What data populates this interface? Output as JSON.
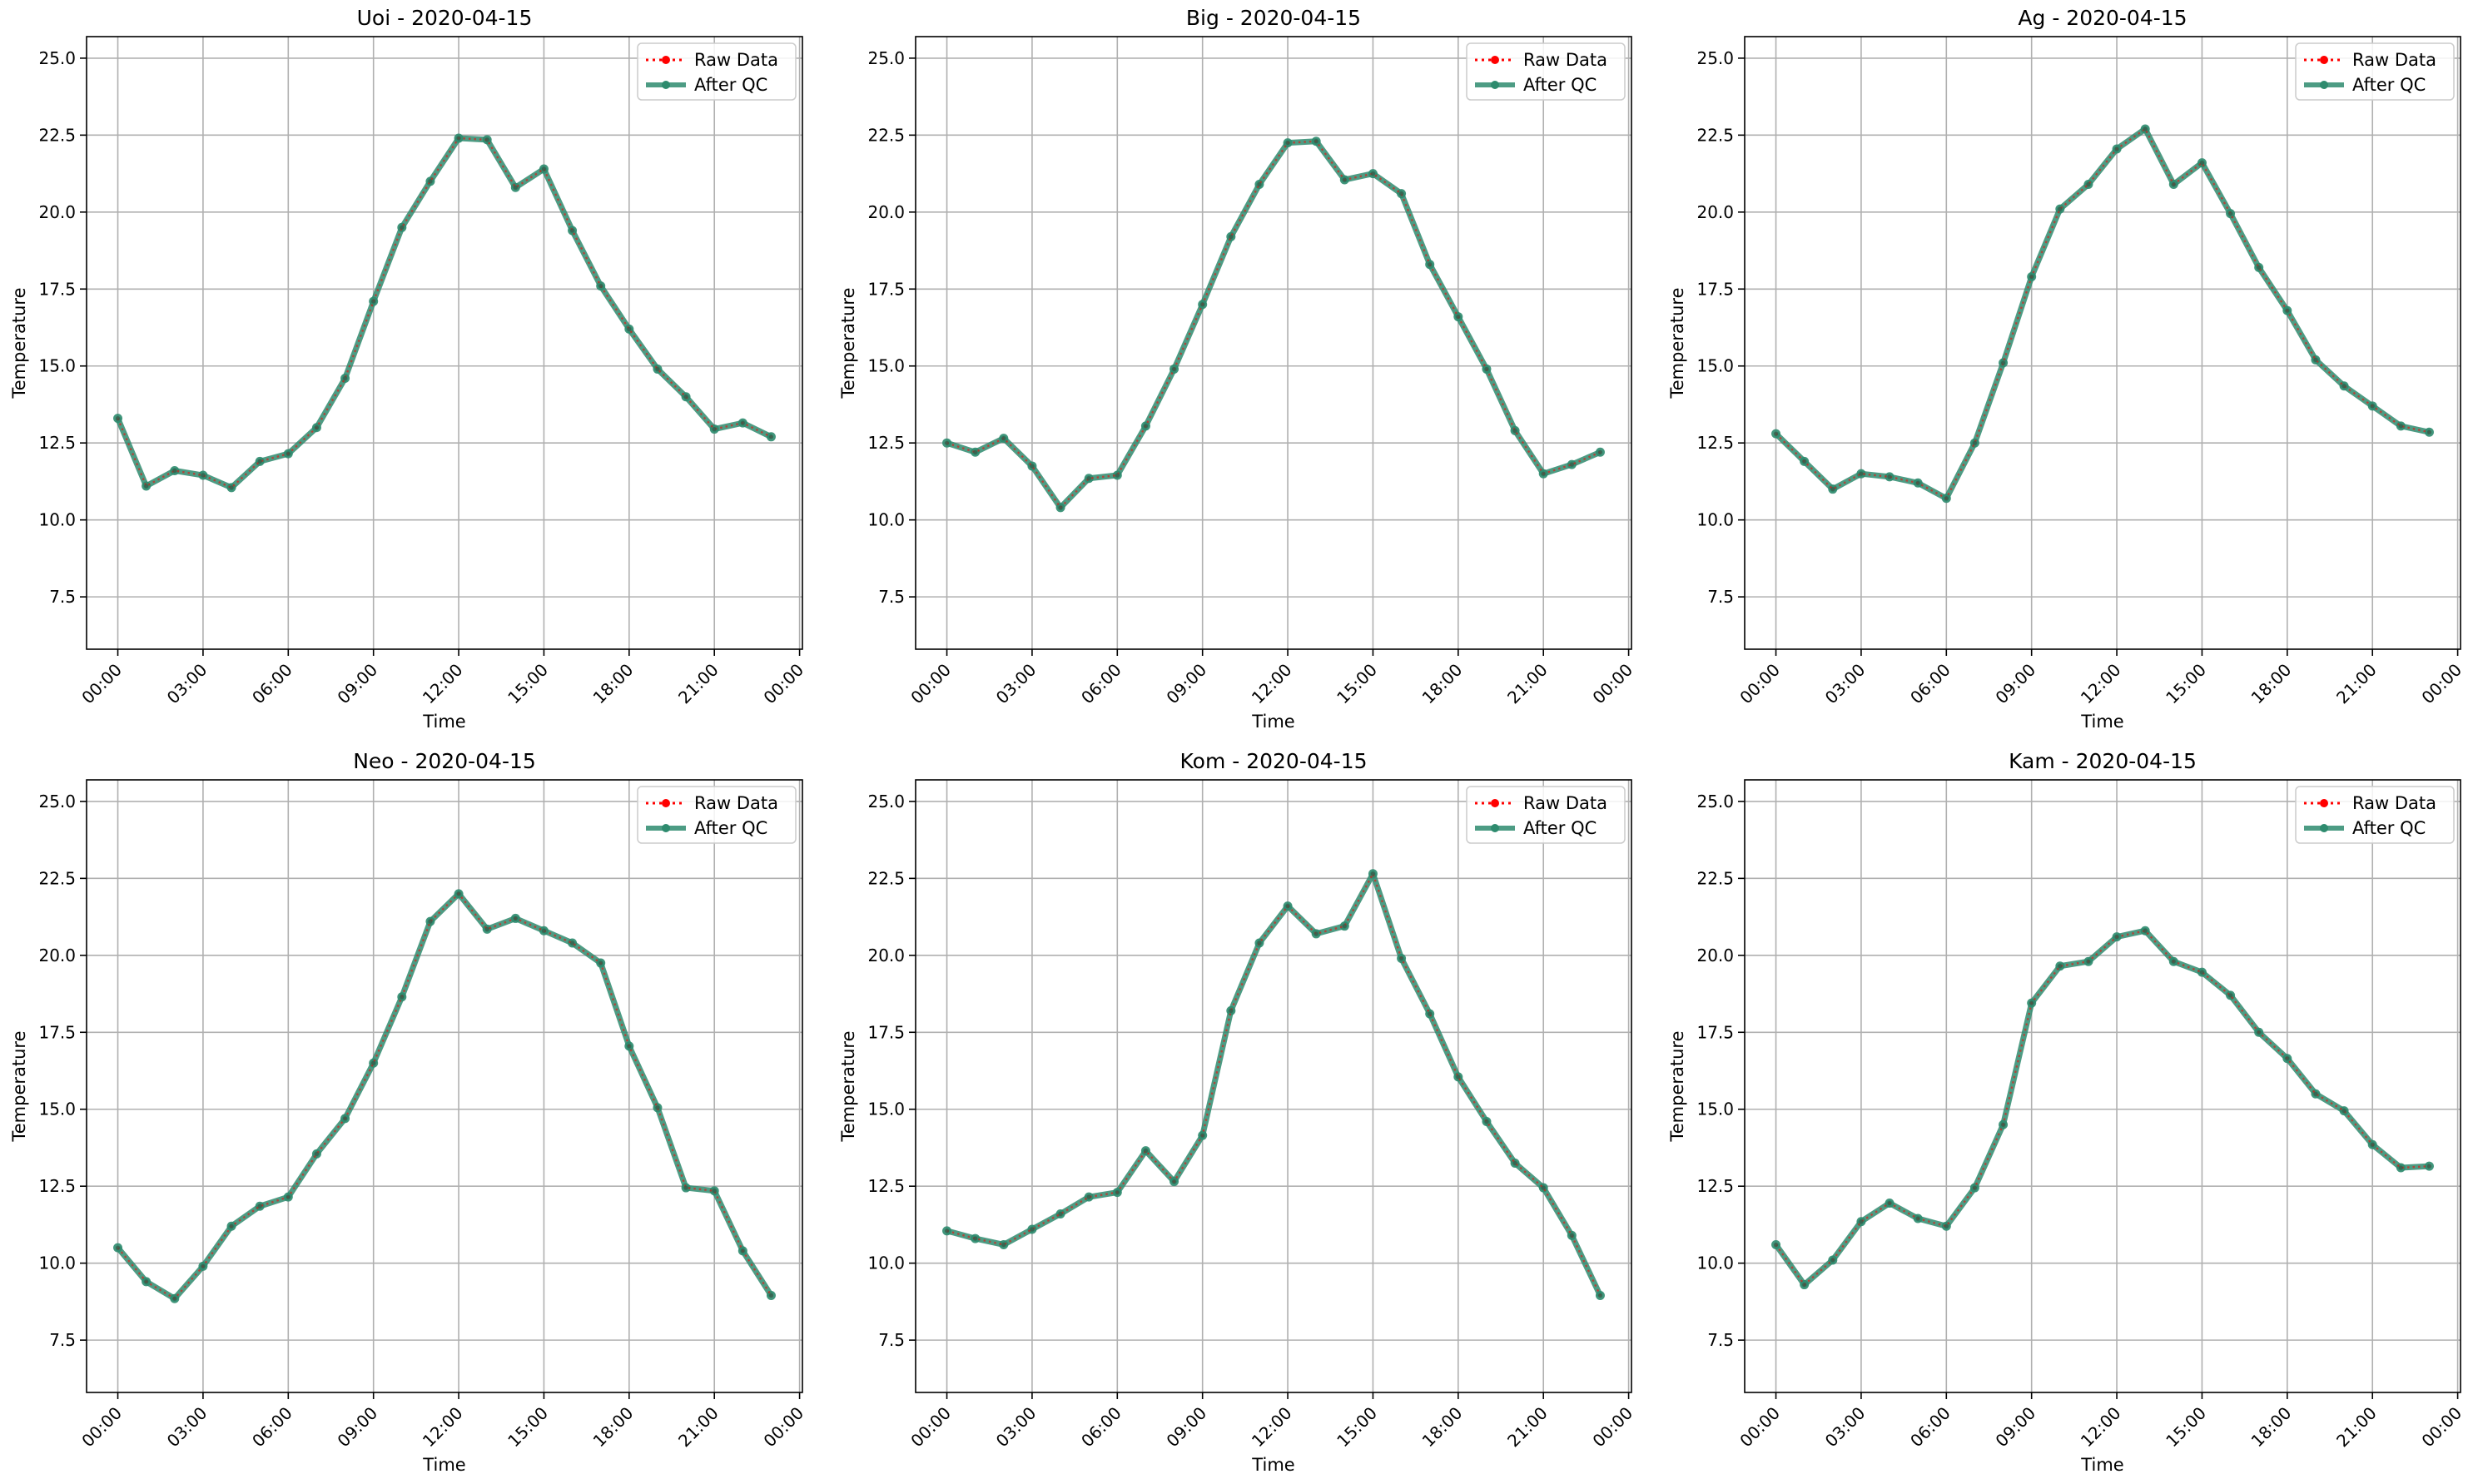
{
  "figure": {
    "panels_per_row": 3
  },
  "colors": {
    "raw": "#ff0000",
    "qc": "#2e8b6e",
    "grid": "#b0b0b0",
    "axes": "#000000"
  },
  "chart_data": [
    {
      "type": "line",
      "title": "Uoi - 2020-04-15",
      "xlabel": "Time",
      "ylabel": "Temperature",
      "x": [
        "00:00",
        "01:00",
        "02:00",
        "03:00",
        "04:00",
        "05:00",
        "06:00",
        "07:00",
        "08:00",
        "09:00",
        "10:00",
        "11:00",
        "12:00",
        "13:00",
        "14:00",
        "15:00",
        "16:00",
        "17:00",
        "18:00",
        "19:00",
        "20:00",
        "21:00",
        "22:00",
        "23:00"
      ],
      "xtick_labels": [
        "00:00",
        "03:00",
        "06:00",
        "09:00",
        "12:00",
        "15:00",
        "18:00",
        "21:00",
        "00:00"
      ],
      "xlim_hours": [
        -1.1,
        24.1
      ],
      "ylim": [
        5.8,
        25.7
      ],
      "yticks": [
        7.5,
        10.0,
        12.5,
        15.0,
        17.5,
        20.0,
        22.5,
        25.0
      ],
      "ytick_labels": [
        "7.5",
        "10.0",
        "12.5",
        "15.0",
        "17.5",
        "20.0",
        "22.5",
        "25.0"
      ],
      "grid": true,
      "legend": "top-right",
      "series": [
        {
          "name": "Raw Data",
          "style": "dotted",
          "values": [
            13.3,
            11.1,
            11.6,
            11.45,
            11.05,
            11.9,
            12.15,
            13.0,
            14.6,
            17.1,
            19.5,
            21.0,
            22.4,
            22.35,
            20.8,
            21.4,
            19.4,
            17.6,
            16.2,
            14.9,
            14.0,
            12.95,
            13.15,
            12.7
          ]
        },
        {
          "name": "After QC",
          "style": "solid",
          "values": [
            13.3,
            11.1,
            11.6,
            11.45,
            11.05,
            11.9,
            12.15,
            13.0,
            14.6,
            17.1,
            19.5,
            21.0,
            22.4,
            22.35,
            20.8,
            21.4,
            19.4,
            17.6,
            16.2,
            14.9,
            14.0,
            12.95,
            13.15,
            12.7
          ]
        }
      ]
    },
    {
      "type": "line",
      "title": "Big - 2020-04-15",
      "xlabel": "Time",
      "ylabel": "Temperature",
      "x": [
        "00:00",
        "01:00",
        "02:00",
        "03:00",
        "04:00",
        "05:00",
        "06:00",
        "07:00",
        "08:00",
        "09:00",
        "10:00",
        "11:00",
        "12:00",
        "13:00",
        "14:00",
        "15:00",
        "16:00",
        "17:00",
        "18:00",
        "19:00",
        "20:00",
        "21:00",
        "22:00",
        "23:00"
      ],
      "xtick_labels": [
        "00:00",
        "03:00",
        "06:00",
        "09:00",
        "12:00",
        "15:00",
        "18:00",
        "21:00",
        "00:00"
      ],
      "xlim_hours": [
        -1.1,
        24.1
      ],
      "ylim": [
        5.8,
        25.7
      ],
      "yticks": [
        7.5,
        10.0,
        12.5,
        15.0,
        17.5,
        20.0,
        22.5,
        25.0
      ],
      "ytick_labels": [
        "7.5",
        "10.0",
        "12.5",
        "15.0",
        "17.5",
        "20.0",
        "22.5",
        "25.0"
      ],
      "grid": true,
      "legend": "top-right",
      "series": [
        {
          "name": "Raw Data",
          "style": "dotted",
          "values": [
            12.5,
            12.2,
            12.65,
            11.75,
            10.4,
            11.35,
            11.45,
            13.05,
            14.9,
            17.0,
            19.2,
            20.9,
            22.25,
            22.3,
            21.05,
            21.25,
            20.6,
            18.3,
            16.6,
            14.9,
            12.9,
            11.5,
            11.8,
            12.2
          ]
        },
        {
          "name": "After QC",
          "style": "solid",
          "values": [
            12.5,
            12.2,
            12.65,
            11.75,
            10.4,
            11.35,
            11.45,
            13.05,
            14.9,
            17.0,
            19.2,
            20.9,
            22.25,
            22.3,
            21.05,
            21.25,
            20.6,
            18.3,
            16.6,
            14.9,
            12.9,
            11.5,
            11.8,
            12.2
          ]
        }
      ]
    },
    {
      "type": "line",
      "title": "Ag - 2020-04-15",
      "xlabel": "Time",
      "ylabel": "Temperature",
      "x": [
        "00:00",
        "01:00",
        "02:00",
        "03:00",
        "04:00",
        "05:00",
        "06:00",
        "07:00",
        "08:00",
        "09:00",
        "10:00",
        "11:00",
        "12:00",
        "13:00",
        "14:00",
        "15:00",
        "16:00",
        "17:00",
        "18:00",
        "19:00",
        "20:00",
        "21:00",
        "22:00",
        "23:00"
      ],
      "xtick_labels": [
        "00:00",
        "03:00",
        "06:00",
        "09:00",
        "12:00",
        "15:00",
        "18:00",
        "21:00",
        "00:00"
      ],
      "xlim_hours": [
        -1.1,
        24.1
      ],
      "ylim": [
        5.8,
        25.7
      ],
      "yticks": [
        7.5,
        10.0,
        12.5,
        15.0,
        17.5,
        20.0,
        22.5,
        25.0
      ],
      "ytick_labels": [
        "7.5",
        "10.0",
        "12.5",
        "15.0",
        "17.5",
        "20.0",
        "22.5",
        "25.0"
      ],
      "grid": true,
      "legend": "top-right",
      "series": [
        {
          "name": "Raw Data",
          "style": "dotted",
          "values": [
            12.8,
            11.9,
            11.0,
            11.5,
            11.4,
            11.2,
            10.7,
            12.5,
            15.1,
            17.9,
            20.1,
            20.9,
            22.05,
            22.7,
            20.9,
            21.6,
            19.95,
            18.2,
            16.8,
            15.2,
            14.35,
            13.7,
            13.05,
            12.85
          ]
        },
        {
          "name": "After QC",
          "style": "solid",
          "values": [
            12.8,
            11.9,
            11.0,
            11.5,
            11.4,
            11.2,
            10.7,
            12.5,
            15.1,
            17.9,
            20.1,
            20.9,
            22.05,
            22.7,
            20.9,
            21.6,
            19.95,
            18.2,
            16.8,
            15.2,
            14.35,
            13.7,
            13.05,
            12.85
          ]
        }
      ]
    },
    {
      "type": "line",
      "title": "Neo - 2020-04-15",
      "xlabel": "Time",
      "ylabel": "Temperature",
      "x": [
        "00:00",
        "01:00",
        "02:00",
        "03:00",
        "04:00",
        "05:00",
        "06:00",
        "07:00",
        "08:00",
        "09:00",
        "10:00",
        "11:00",
        "12:00",
        "13:00",
        "14:00",
        "15:00",
        "16:00",
        "17:00",
        "18:00",
        "19:00",
        "20:00",
        "21:00",
        "22:00",
        "23:00"
      ],
      "xtick_labels": [
        "00:00",
        "03:00",
        "06:00",
        "09:00",
        "12:00",
        "15:00",
        "18:00",
        "21:00",
        "00:00"
      ],
      "xlim_hours": [
        -1.1,
        24.1
      ],
      "ylim": [
        5.8,
        25.7
      ],
      "yticks": [
        7.5,
        10.0,
        12.5,
        15.0,
        17.5,
        20.0,
        22.5,
        25.0
      ],
      "ytick_labels": [
        "7.5",
        "10.0",
        "12.5",
        "15.0",
        "17.5",
        "20.0",
        "22.5",
        "25.0"
      ],
      "grid": true,
      "legend": "top-right",
      "series": [
        {
          "name": "Raw Data",
          "style": "dotted",
          "values": [
            10.5,
            9.4,
            8.85,
            9.9,
            11.2,
            11.85,
            12.15,
            13.55,
            14.7,
            16.5,
            18.65,
            21.1,
            22.0,
            20.85,
            21.2,
            20.8,
            20.4,
            19.75,
            17.05,
            15.05,
            12.45,
            12.35,
            10.4,
            8.95
          ]
        },
        {
          "name": "After QC",
          "style": "solid",
          "values": [
            10.5,
            9.4,
            8.85,
            9.9,
            11.2,
            11.85,
            12.15,
            13.55,
            14.7,
            16.5,
            18.65,
            21.1,
            22.0,
            20.85,
            21.2,
            20.8,
            20.4,
            19.75,
            17.05,
            15.05,
            12.45,
            12.35,
            10.4,
            8.95
          ]
        }
      ]
    },
    {
      "type": "line",
      "title": "Kom - 2020-04-15",
      "xlabel": "Time",
      "ylabel": "Temperature",
      "x": [
        "00:00",
        "01:00",
        "02:00",
        "03:00",
        "04:00",
        "05:00",
        "06:00",
        "07:00",
        "08:00",
        "09:00",
        "10:00",
        "11:00",
        "12:00",
        "13:00",
        "14:00",
        "15:00",
        "16:00",
        "17:00",
        "18:00",
        "19:00",
        "20:00",
        "21:00",
        "22:00",
        "23:00"
      ],
      "xtick_labels": [
        "00:00",
        "03:00",
        "06:00",
        "09:00",
        "12:00",
        "15:00",
        "18:00",
        "21:00",
        "00:00"
      ],
      "xlim_hours": [
        -1.1,
        24.1
      ],
      "ylim": [
        5.8,
        25.7
      ],
      "yticks": [
        7.5,
        10.0,
        12.5,
        15.0,
        17.5,
        20.0,
        22.5,
        25.0
      ],
      "ytick_labels": [
        "7.5",
        "10.0",
        "12.5",
        "15.0",
        "17.5",
        "20.0",
        "22.5",
        "25.0"
      ],
      "grid": true,
      "legend": "top-right",
      "series": [
        {
          "name": "Raw Data",
          "style": "dotted",
          "values": [
            11.05,
            10.8,
            10.6,
            11.1,
            11.6,
            12.15,
            12.3,
            13.65,
            12.65,
            14.15,
            18.2,
            20.4,
            21.6,
            20.7,
            20.95,
            22.65,
            19.9,
            18.1,
            16.05,
            14.6,
            13.25,
            12.45,
            10.9,
            8.95
          ]
        },
        {
          "name": "After QC",
          "style": "solid",
          "values": [
            11.05,
            10.8,
            10.6,
            11.1,
            11.6,
            12.15,
            12.3,
            13.65,
            12.65,
            14.15,
            18.2,
            20.4,
            21.6,
            20.7,
            20.95,
            22.65,
            19.9,
            18.1,
            16.05,
            14.6,
            13.25,
            12.45,
            10.9,
            8.95
          ]
        }
      ]
    },
    {
      "type": "line",
      "title": "Kam - 2020-04-15",
      "xlabel": "Time",
      "ylabel": "Temperature",
      "x": [
        "00:00",
        "01:00",
        "02:00",
        "03:00",
        "04:00",
        "05:00",
        "06:00",
        "07:00",
        "08:00",
        "09:00",
        "10:00",
        "11:00",
        "12:00",
        "13:00",
        "14:00",
        "15:00",
        "16:00",
        "17:00",
        "18:00",
        "19:00",
        "20:00",
        "21:00",
        "22:00",
        "23:00"
      ],
      "xtick_labels": [
        "00:00",
        "03:00",
        "06:00",
        "09:00",
        "12:00",
        "15:00",
        "18:00",
        "21:00",
        "00:00"
      ],
      "xlim_hours": [
        -1.1,
        24.1
      ],
      "ylim": [
        5.8,
        25.7
      ],
      "yticks": [
        7.5,
        10.0,
        12.5,
        15.0,
        17.5,
        20.0,
        22.5,
        25.0
      ],
      "ytick_labels": [
        "7.5",
        "10.0",
        "12.5",
        "15.0",
        "17.5",
        "20.0",
        "22.5",
        "25.0"
      ],
      "grid": true,
      "legend": "top-right",
      "series": [
        {
          "name": "Raw Data",
          "style": "dotted",
          "values": [
            10.6,
            9.3,
            10.1,
            11.35,
            11.95,
            11.45,
            11.2,
            12.45,
            14.5,
            18.45,
            19.65,
            19.8,
            20.6,
            20.8,
            19.8,
            19.45,
            18.7,
            17.5,
            16.65,
            15.5,
            14.95,
            13.85,
            13.1,
            13.15
          ]
        },
        {
          "name": "After QC",
          "style": "solid",
          "values": [
            10.6,
            9.3,
            10.1,
            11.35,
            11.95,
            11.45,
            11.2,
            12.45,
            14.5,
            18.45,
            19.65,
            19.8,
            20.6,
            20.8,
            19.8,
            19.45,
            18.7,
            17.5,
            16.65,
            15.5,
            14.95,
            13.85,
            13.1,
            13.15
          ]
        }
      ]
    }
  ]
}
